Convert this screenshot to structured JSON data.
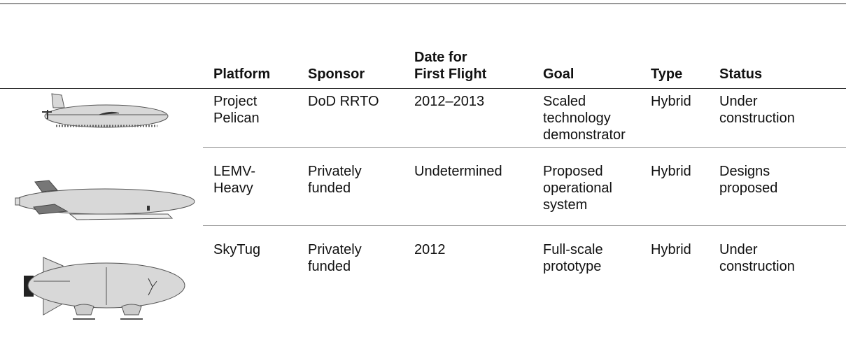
{
  "header": [
    "Platform",
    "Sponsor",
    "Date for\nFirst Flight",
    "Goal",
    "Type",
    "Status"
  ],
  "rows": [
    [
      "Project Pelican",
      "DoD RRTO",
      "2012–2013",
      "Scaled technology demonstrator",
      "Hybrid",
      "Under construction"
    ],
    [
      "LEMV-Heavy",
      "Privately funded",
      "Undetermined",
      "Proposed operational system",
      "Hybrid",
      "Designs proposed"
    ],
    [
      "SkyTug",
      "Privately funded",
      "2012",
      "Full-scale prototype",
      "Hybrid",
      "Under construction"
    ]
  ]
}
